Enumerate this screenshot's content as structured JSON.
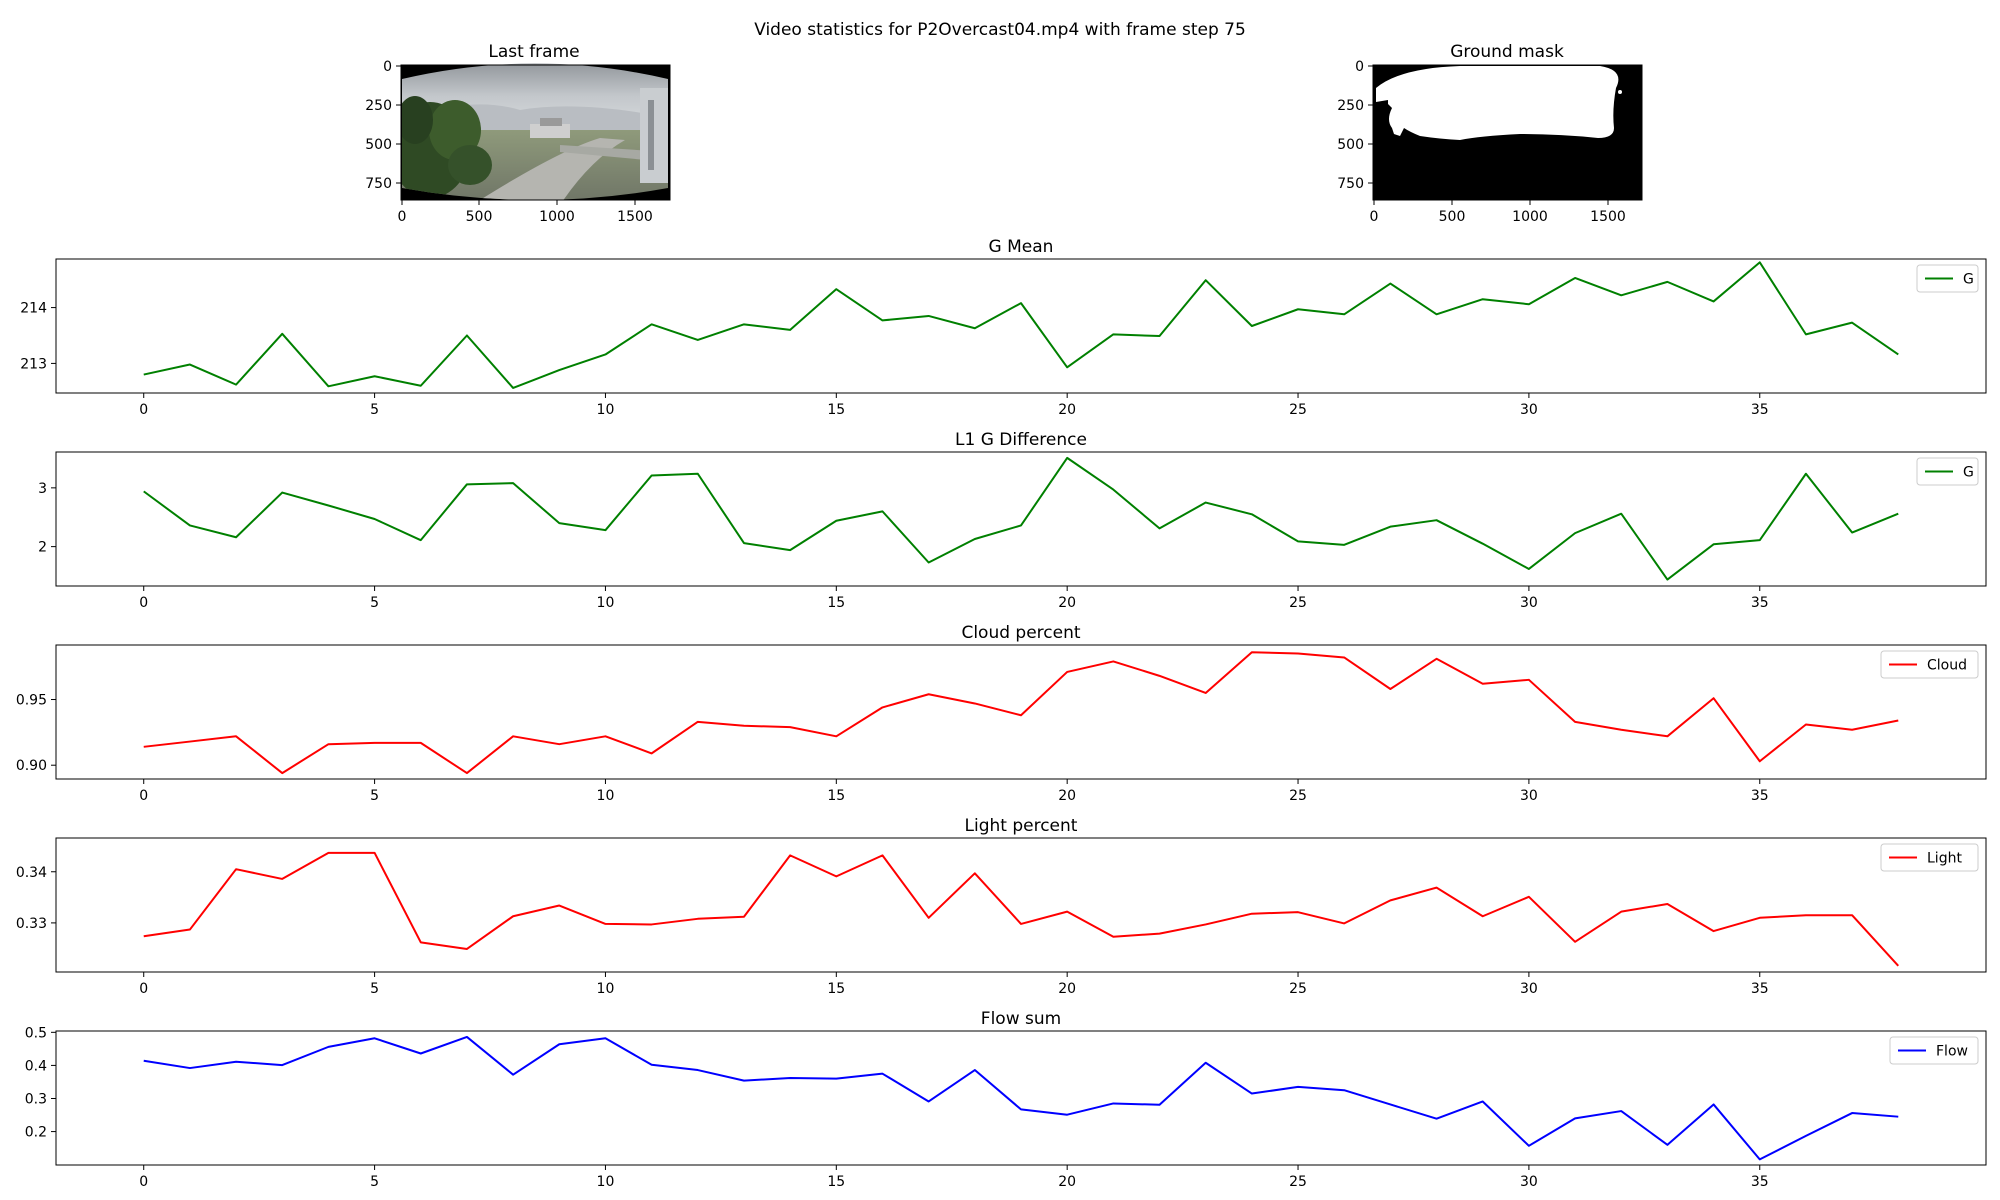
{
  "figure": {
    "suptitle": "Video statistics for P2Overcast04.mp4 with frame step 75"
  },
  "images": [
    {
      "title": "Last frame",
      "content": "camera-frame",
      "xticks": [
        "0",
        "500",
        "1000",
        "1500"
      ],
      "yticks": [
        "0",
        "250",
        "500",
        "750"
      ],
      "xlim": [
        0,
        1728
      ],
      "ylim": [
        864,
        0
      ]
    },
    {
      "title": "Ground mask",
      "content": "binary-mask",
      "xticks": [
        "0",
        "500",
        "1000",
        "1500"
      ],
      "yticks": [
        "0",
        "250",
        "500",
        "750"
      ],
      "xlim": [
        0,
        1728
      ],
      "ylim": [
        864,
        0
      ]
    }
  ],
  "chart_data": [
    {
      "type": "line",
      "title": "G Mean",
      "xlim": [
        -1.9,
        39.9
      ],
      "ylim": [
        212.47,
        214.87
      ],
      "xticks": [
        0,
        5,
        10,
        15,
        20,
        25,
        30,
        35
      ],
      "yticks": [
        213,
        214
      ],
      "ytick_labels": [
        "213",
        "214"
      ],
      "legend_position": "top-right",
      "grid": false,
      "series": [
        {
          "name": "G",
          "color": "#008000",
          "x": [
            0,
            1,
            2,
            3,
            4,
            5,
            6,
            7,
            8,
            9,
            10,
            11,
            12,
            13,
            14,
            15,
            16,
            17,
            18,
            19,
            20,
            21,
            22,
            23,
            24,
            25,
            26,
            27,
            28,
            29,
            30,
            31,
            32,
            33,
            34,
            35,
            36,
            37,
            38
          ],
          "values": [
            212.8,
            212.98,
            212.62,
            213.53,
            212.59,
            212.77,
            212.6,
            213.5,
            212.56,
            212.88,
            213.16,
            213.7,
            213.42,
            213.7,
            213.6,
            214.33,
            213.77,
            213.85,
            213.63,
            214.08,
            212.93,
            213.52,
            213.49,
            214.49,
            213.67,
            213.97,
            213.88,
            214.43,
            213.88,
            214.15,
            214.06,
            214.53,
            214.22,
            214.46,
            214.11,
            214.81,
            213.52,
            213.73,
            213.16
          ]
        }
      ]
    },
    {
      "type": "line",
      "title": "L1 G Difference",
      "xlim": [
        -1.9,
        39.9
      ],
      "ylim": [
        1.33,
        3.61
      ],
      "xticks": [
        0,
        5,
        10,
        15,
        20,
        25,
        30,
        35
      ],
      "yticks": [
        2,
        3
      ],
      "ytick_labels": [
        "2",
        "3"
      ],
      "legend_position": "top-right",
      "grid": false,
      "series": [
        {
          "name": "G",
          "color": "#008000",
          "x": [
            0,
            1,
            2,
            3,
            4,
            5,
            6,
            7,
            8,
            9,
            10,
            11,
            12,
            13,
            14,
            15,
            16,
            17,
            18,
            19,
            20,
            21,
            22,
            23,
            24,
            25,
            26,
            27,
            28,
            29,
            30,
            31,
            32,
            33,
            34,
            35,
            36,
            37,
            38
          ],
          "values": [
            2.94,
            2.36,
            2.16,
            2.92,
            2.7,
            2.47,
            2.11,
            3.06,
            3.08,
            2.4,
            2.28,
            3.21,
            3.24,
            2.06,
            1.94,
            2.44,
            2.6,
            1.73,
            2.13,
            2.36,
            3.51,
            2.97,
            2.31,
            2.75,
            2.55,
            2.09,
            2.03,
            2.34,
            2.45,
            2.05,
            1.62,
            2.23,
            2.56,
            1.44,
            2.04,
            2.11,
            3.24,
            2.24,
            2.56
          ]
        }
      ]
    },
    {
      "type": "line",
      "title": "Cloud percent",
      "xlim": [
        -1.9,
        39.9
      ],
      "ylim": [
        0.8895,
        0.9915
      ],
      "xticks": [
        0,
        5,
        10,
        15,
        20,
        25,
        30,
        35
      ],
      "yticks": [
        0.9,
        0.95
      ],
      "ytick_labels": [
        "0.90",
        "0.95"
      ],
      "legend_position": "top-right",
      "grid": false,
      "series": [
        {
          "name": "Cloud",
          "color": "#ff0000",
          "x": [
            0,
            1,
            2,
            3,
            4,
            5,
            6,
            7,
            8,
            9,
            10,
            11,
            12,
            13,
            14,
            15,
            16,
            17,
            18,
            19,
            20,
            21,
            22,
            23,
            24,
            25,
            26,
            27,
            28,
            29,
            30,
            31,
            32,
            33,
            34,
            35,
            36,
            37,
            38
          ],
          "values": [
            0.914,
            0.918,
            0.922,
            0.894,
            0.916,
            0.917,
            0.917,
            0.894,
            0.922,
            0.916,
            0.922,
            0.909,
            0.933,
            0.93,
            0.929,
            0.922,
            0.944,
            0.954,
            0.947,
            0.938,
            0.971,
            0.979,
            0.968,
            0.955,
            0.986,
            0.985,
            0.982,
            0.958,
            0.981,
            0.962,
            0.965,
            0.933,
            0.927,
            0.922,
            0.951,
            0.903,
            0.931,
            0.927,
            0.934
          ]
        }
      ]
    },
    {
      "type": "line",
      "title": "Light percent",
      "xlim": [
        -1.9,
        39.9
      ],
      "ylim": [
        0.3204,
        0.3466
      ],
      "xticks": [
        0,
        5,
        10,
        15,
        20,
        25,
        30,
        35
      ],
      "yticks": [
        0.33,
        0.34
      ],
      "ytick_labels": [
        "0.33",
        "0.34"
      ],
      "legend_position": "top-right",
      "grid": false,
      "series": [
        {
          "name": "Light",
          "color": "#ff0000",
          "x": [
            0,
            1,
            2,
            3,
            4,
            5,
            6,
            7,
            8,
            9,
            10,
            11,
            12,
            13,
            14,
            15,
            16,
            17,
            18,
            19,
            20,
            21,
            22,
            23,
            24,
            25,
            26,
            27,
            28,
            29,
            30,
            31,
            32,
            33,
            34,
            35,
            36,
            37,
            38
          ],
          "values": [
            0.3274,
            0.3287,
            0.3405,
            0.3386,
            0.3437,
            0.3437,
            0.3262,
            0.3249,
            0.3313,
            0.3334,
            0.3298,
            0.3297,
            0.3308,
            0.3312,
            0.3432,
            0.3391,
            0.3432,
            0.331,
            0.3397,
            0.3298,
            0.3322,
            0.3273,
            0.3279,
            0.3297,
            0.3318,
            0.3321,
            0.3299,
            0.3344,
            0.3369,
            0.3313,
            0.3351,
            0.3263,
            0.3322,
            0.3337,
            0.3284,
            0.331,
            0.3315,
            0.3315,
            0.3216
          ]
        }
      ]
    },
    {
      "type": "line",
      "title": "Flow sum",
      "xlim": [
        -1.9,
        39.9
      ],
      "ylim": [
        0.099,
        0.504
      ],
      "xticks": [
        0,
        5,
        10,
        15,
        20,
        25,
        30,
        35
      ],
      "yticks": [
        0.2,
        0.3,
        0.4,
        0.5
      ],
      "ytick_labels": [
        "0.2",
        "0.3",
        "0.4",
        "0.5"
      ],
      "legend_position": "top-right",
      "grid": false,
      "series": [
        {
          "name": "Flow",
          "color": "#0000ff",
          "x": [
            0,
            1,
            2,
            3,
            4,
            5,
            6,
            7,
            8,
            9,
            10,
            11,
            12,
            13,
            14,
            15,
            16,
            17,
            18,
            19,
            20,
            21,
            22,
            23,
            24,
            25,
            26,
            27,
            28,
            29,
            30,
            31,
            32,
            33,
            34,
            35,
            36,
            37,
            38
          ],
          "values": [
            0.414,
            0.392,
            0.411,
            0.401,
            0.456,
            0.482,
            0.436,
            0.486,
            0.372,
            0.464,
            0.482,
            0.402,
            0.386,
            0.354,
            0.362,
            0.36,
            0.375,
            0.291,
            0.386,
            0.267,
            0.251,
            0.285,
            0.281,
            0.408,
            0.315,
            0.335,
            0.325,
            0.282,
            0.239,
            0.291,
            0.157,
            0.24,
            0.262,
            0.16,
            0.282,
            0.116,
            0.187,
            0.256,
            0.245
          ]
        }
      ]
    }
  ]
}
